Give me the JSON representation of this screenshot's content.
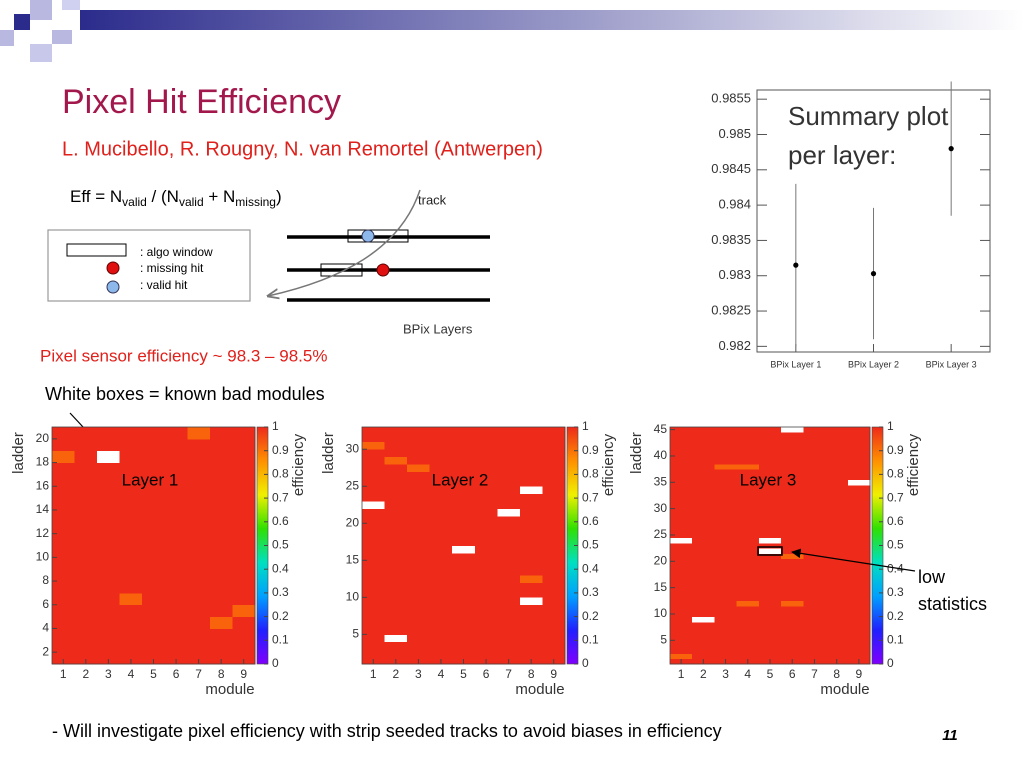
{
  "slide": {
    "title": "Pixel Hit Efficiency",
    "authors": "L. Mucibello, R. Rougny, N. van Remortel (Antwerpen)",
    "formula": [
      "Eff = N",
      "valid",
      " / (N",
      "valid",
      " + N",
      "missing",
      ")"
    ],
    "diagram": {
      "legend": [
        ": algo window",
        ": missing hit",
        ": valid hit"
      ],
      "track": "track",
      "layers": "BPix Layers"
    },
    "efficiency_note": "Pixel sensor efficiency ~ 98.3 – 98.5%",
    "bad_modules_note": "White boxes = known bad modules",
    "low_stats_note": [
      "low",
      "statistics"
    ],
    "footer": "- Will investigate pixel efficiency with strip seeded tracks to avoid biases in efficiency",
    "page_number": "11"
  },
  "chart_data": [
    {
      "type": "errorbar",
      "annotation": [
        "Summary plot",
        "per layer:"
      ],
      "categories": [
        "BPix Layer 1",
        "BPix Layer 2",
        "BPix Layer 3"
      ],
      "values": [
        0.98315,
        0.98303,
        0.9848
      ],
      "errors": [
        0.00115,
        0.00093,
        0.00095
      ],
      "color": "#000000",
      "ylim": [
        0.98192,
        0.98563
      ],
      "yticks": [
        0.982,
        0.9825,
        0.983,
        0.9835,
        0.984,
        0.9845,
        0.985,
        0.9855
      ]
    },
    {
      "type": "heatmap",
      "title": "Layer 1",
      "xlabel": "module",
      "ylabel": "ladder",
      "zlabel": "efficiency",
      "xlim": [
        0.5,
        9.5
      ],
      "xticks": [
        1,
        2,
        3,
        4,
        5,
        6,
        7,
        8,
        9
      ],
      "ylim": [
        1,
        21
      ],
      "yticks": [
        2,
        4,
        6,
        8,
        10,
        12,
        14,
        16,
        18,
        20
      ],
      "zlim": [
        0,
        1
      ],
      "zticks": [
        0,
        0.1,
        0.2,
        0.3,
        0.4,
        0.5,
        0.6,
        0.7,
        0.8,
        0.9,
        1
      ],
      "colors": [
        "#8000ff",
        "#2020ff",
        "#00a0ff",
        "#00e0c0",
        "#30e000",
        "#f0f000",
        "#ff9000",
        "#ee2a1a"
      ],
      "z": [
        [
          1,
          1,
          1,
          1,
          1,
          1,
          1,
          1,
          1
        ],
        [
          1,
          1,
          1,
          1,
          1,
          1,
          1,
          1,
          1
        ],
        [
          1,
          1,
          1,
          1,
          1,
          1,
          1,
          1,
          1
        ],
        [
          1,
          1,
          1,
          1,
          1,
          1,
          1,
          0.92,
          1
        ],
        [
          1,
          1,
          1,
          1,
          1,
          1,
          1,
          1,
          0.92
        ],
        [
          1,
          1,
          1,
          0.92,
          1,
          1,
          1,
          1,
          1
        ],
        [
          1,
          1,
          1,
          1,
          1,
          1,
          1,
          1,
          1
        ],
        [
          1,
          1,
          1,
          1,
          1,
          1,
          1,
          1,
          1
        ],
        [
          1,
          1,
          1,
          1,
          1,
          1,
          1,
          1,
          1
        ],
        [
          1,
          1,
          1,
          1,
          1,
          1,
          1,
          1,
          1
        ],
        [
          1,
          1,
          1,
          1,
          1,
          1,
          1,
          1,
          1
        ],
        [
          1,
          1,
          1,
          1,
          1,
          1,
          1,
          1,
          1
        ],
        [
          1,
          1,
          1,
          1,
          1,
          1,
          1,
          1,
          1
        ],
        [
          1,
          1,
          1,
          1,
          1,
          1,
          1,
          1,
          1
        ],
        [
          1,
          1,
          1,
          1,
          1,
          1,
          1,
          1,
          1
        ],
        [
          1,
          1,
          1,
          1,
          1,
          1,
          1,
          1,
          1
        ],
        [
          1,
          1,
          1,
          1,
          1,
          1,
          1,
          1,
          1
        ],
        [
          0.92,
          1,
          null,
          1,
          1,
          1,
          1,
          1,
          1
        ],
        [
          1,
          1,
          1,
          1,
          1,
          1,
          1,
          1,
          1
        ],
        [
          1,
          1,
          1,
          1,
          1,
          1,
          0.92,
          1,
          1
        ]
      ]
    },
    {
      "type": "heatmap",
      "title": "Layer 2",
      "xlabel": "module",
      "ylabel": "ladder",
      "zlabel": "efficiency",
      "xlim": [
        0.5,
        9.5
      ],
      "xticks": [
        1,
        2,
        3,
        4,
        5,
        6,
        7,
        8,
        9
      ],
      "ylim": [
        1,
        33
      ],
      "yticks": [
        5,
        10,
        15,
        20,
        25,
        30
      ],
      "zlim": [
        0,
        1
      ],
      "zticks": [
        0,
        0.1,
        0.2,
        0.3,
        0.4,
        0.5,
        0.6,
        0.7,
        0.8,
        0.9,
        1
      ],
      "colors": [
        "#8000ff",
        "#2020ff",
        "#00a0ff",
        "#00e0c0",
        "#30e000",
        "#f0f000",
        "#ff9000",
        "#ee2a1a"
      ],
      "z": [
        [
          1,
          1,
          1,
          1,
          1,
          1,
          1,
          1,
          1
        ],
        [
          1,
          1,
          1,
          1,
          1,
          1,
          1,
          1,
          1
        ],
        [
          1,
          1,
          1,
          1,
          1,
          1,
          1,
          1,
          1
        ],
        [
          1,
          null,
          1,
          1,
          1,
          1,
          1,
          1,
          1
        ],
        [
          1,
          1,
          1,
          1,
          1,
          1,
          1,
          1,
          1
        ],
        [
          1,
          1,
          1,
          1,
          1,
          1,
          1,
          1,
          1
        ],
        [
          1,
          1,
          1,
          1,
          1,
          1,
          1,
          1,
          1
        ],
        [
          1,
          1,
          1,
          1,
          1,
          1,
          1,
          1,
          1
        ],
        [
          1,
          1,
          1,
          1,
          1,
          1,
          1,
          null,
          1
        ],
        [
          1,
          1,
          1,
          1,
          1,
          1,
          1,
          1,
          1
        ],
        [
          1,
          1,
          1,
          1,
          1,
          1,
          1,
          1,
          1
        ],
        [
          1,
          1,
          1,
          1,
          1,
          1,
          1,
          0.92,
          1
        ],
        [
          1,
          1,
          1,
          1,
          1,
          1,
          1,
          1,
          1
        ],
        [
          1,
          1,
          1,
          1,
          1,
          1,
          1,
          1,
          1
        ],
        [
          1,
          1,
          1,
          1,
          1,
          1,
          1,
          1,
          1
        ],
        [
          1,
          1,
          1,
          1,
          null,
          1,
          1,
          1,
          1
        ],
        [
          1,
          1,
          1,
          1,
          1,
          1,
          1,
          1,
          1
        ],
        [
          1,
          1,
          1,
          1,
          1,
          1,
          1,
          1,
          1
        ],
        [
          1,
          1,
          1,
          1,
          1,
          1,
          1,
          1,
          1
        ],
        [
          1,
          1,
          1,
          1,
          1,
          1,
          1,
          1,
          1
        ],
        [
          1,
          1,
          1,
          1,
          1,
          1,
          null,
          1,
          1
        ],
        [
          null,
          1,
          1,
          1,
          1,
          1,
          1,
          1,
          1
        ],
        [
          1,
          1,
          1,
          1,
          1,
          1,
          1,
          1,
          1
        ],
        [
          1,
          1,
          1,
          1,
          1,
          1,
          1,
          null,
          1
        ],
        [
          1,
          1,
          1,
          1,
          1,
          1,
          1,
          1,
          1
        ],
        [
          1,
          1,
          1,
          1,
          1,
          1,
          1,
          1,
          1
        ],
        [
          1,
          1,
          0.92,
          1,
          1,
          1,
          1,
          1,
          1
        ],
        [
          1,
          0.92,
          1,
          1,
          1,
          1,
          1,
          1,
          1
        ],
        [
          1,
          1,
          1,
          1,
          1,
          1,
          1,
          1,
          1
        ],
        [
          0.92,
          1,
          1,
          1,
          1,
          1,
          1,
          1,
          1
        ],
        [
          1,
          1,
          1,
          1,
          1,
          1,
          1,
          1,
          1
        ],
        [
          1,
          1,
          1,
          1,
          1,
          1,
          1,
          1,
          1
        ]
      ]
    },
    {
      "type": "heatmap",
      "title": "Layer 3",
      "xlabel": "module",
      "ylabel": "ladder",
      "zlabel": "efficiency",
      "xlim": [
        0.5,
        9.5
      ],
      "xticks": [
        1,
        2,
        3,
        4,
        5,
        6,
        7,
        8,
        9
      ],
      "ylim": [
        0.5,
        45.5
      ],
      "yticks": [
        5,
        10,
        15,
        20,
        25,
        30,
        35,
        40,
        45
      ],
      "zlim": [
        0,
        1
      ],
      "zticks": [
        0,
        0.1,
        0.2,
        0.3,
        0.4,
        0.5,
        0.6,
        0.7,
        0.8,
        0.9,
        1
      ],
      "colors": [
        "#8000ff",
        "#2020ff",
        "#00a0ff",
        "#00e0c0",
        "#30e000",
        "#f0f000",
        "#ff9000",
        "#ee2a1a"
      ],
      "z": [
        [
          1,
          1,
          1,
          1,
          1,
          1,
          1,
          1,
          1
        ],
        [
          0.92,
          1,
          1,
          1,
          1,
          1,
          1,
          1,
          1
        ],
        [
          1,
          1,
          1,
          1,
          1,
          1,
          1,
          1,
          1
        ],
        [
          1,
          1,
          1,
          1,
          1,
          1,
          1,
          1,
          1
        ],
        [
          1,
          1,
          1,
          1,
          1,
          1,
          1,
          1,
          1
        ],
        [
          1,
          1,
          1,
          1,
          1,
          1,
          1,
          1,
          1
        ],
        [
          1,
          1,
          1,
          1,
          1,
          1,
          1,
          1,
          1
        ],
        [
          1,
          1,
          1,
          1,
          1,
          1,
          1,
          1,
          1
        ],
        [
          1,
          null,
          1,
          1,
          1,
          1,
          1,
          1,
          1
        ],
        [
          1,
          1,
          1,
          1,
          1,
          1,
          1,
          1,
          1
        ],
        [
          1,
          1,
          1,
          1,
          1,
          1,
          1,
          1,
          1
        ],
        [
          1,
          1,
          1,
          0.92,
          1,
          0.92,
          1,
          1,
          1
        ],
        [
          1,
          1,
          1,
          1,
          1,
          1,
          1,
          1,
          1
        ],
        [
          1,
          1,
          1,
          1,
          1,
          1,
          1,
          1,
          1
        ],
        [
          1,
          1,
          1,
          1,
          1,
          1,
          1,
          1,
          1
        ],
        [
          1,
          1,
          1,
          1,
          1,
          1,
          1,
          1,
          1
        ],
        [
          1,
          1,
          1,
          1,
          1,
          1,
          1,
          1,
          1
        ],
        [
          1,
          1,
          1,
          1,
          1,
          1,
          1,
          1,
          1
        ],
        [
          1,
          1,
          1,
          1,
          1,
          1,
          1,
          1,
          1
        ],
        [
          1,
          1,
          1,
          1,
          1,
          1,
          1,
          1,
          1
        ],
        [
          1,
          1,
          1,
          1,
          1,
          0.92,
          1,
          1,
          1
        ],
        [
          1,
          1,
          1,
          1,
          null,
          1,
          1,
          1,
          1
        ],
        [
          1,
          1,
          1,
          1,
          1,
          1,
          1,
          1,
          1
        ],
        [
          null,
          1,
          1,
          1,
          null,
          1,
          1,
          1,
          1
        ],
        [
          1,
          1,
          1,
          1,
          1,
          1,
          1,
          1,
          1
        ],
        [
          1,
          1,
          1,
          1,
          1,
          1,
          1,
          1,
          1
        ],
        [
          1,
          1,
          1,
          1,
          1,
          1,
          1,
          1,
          1
        ],
        [
          1,
          1,
          1,
          1,
          1,
          1,
          1,
          1,
          1
        ],
        [
          1,
          1,
          1,
          1,
          1,
          1,
          1,
          1,
          1
        ],
        [
          1,
          1,
          1,
          1,
          1,
          1,
          1,
          1,
          1
        ],
        [
          1,
          1,
          1,
          1,
          1,
          1,
          1,
          1,
          1
        ],
        [
          1,
          1,
          1,
          1,
          1,
          1,
          1,
          1,
          1
        ],
        [
          1,
          1,
          1,
          1,
          1,
          1,
          1,
          1,
          1
        ],
        [
          1,
          1,
          1,
          1,
          1,
          1,
          1,
          1,
          1
        ],
        [
          1,
          1,
          1,
          1,
          1,
          1,
          1,
          1,
          null
        ],
        [
          1,
          1,
          1,
          1,
          1,
          1,
          1,
          1,
          1
        ],
        [
          1,
          1,
          1,
          1,
          1,
          1,
          1,
          1,
          1
        ],
        [
          1,
          1,
          0.92,
          0.92,
          1,
          1,
          1,
          1,
          1
        ],
        [
          1,
          1,
          1,
          1,
          1,
          1,
          1,
          1,
          1
        ],
        [
          1,
          1,
          1,
          1,
          1,
          1,
          1,
          1,
          1
        ],
        [
          1,
          1,
          1,
          1,
          1,
          1,
          1,
          1,
          1
        ],
        [
          1,
          1,
          1,
          1,
          1,
          1,
          1,
          1,
          1
        ],
        [
          1,
          1,
          1,
          1,
          1,
          1,
          1,
          1,
          1
        ],
        [
          1,
          1,
          1,
          1,
          1,
          1,
          1,
          1,
          1
        ],
        [
          1,
          1,
          1,
          1,
          1,
          null,
          1,
          1,
          1
        ]
      ]
    }
  ]
}
